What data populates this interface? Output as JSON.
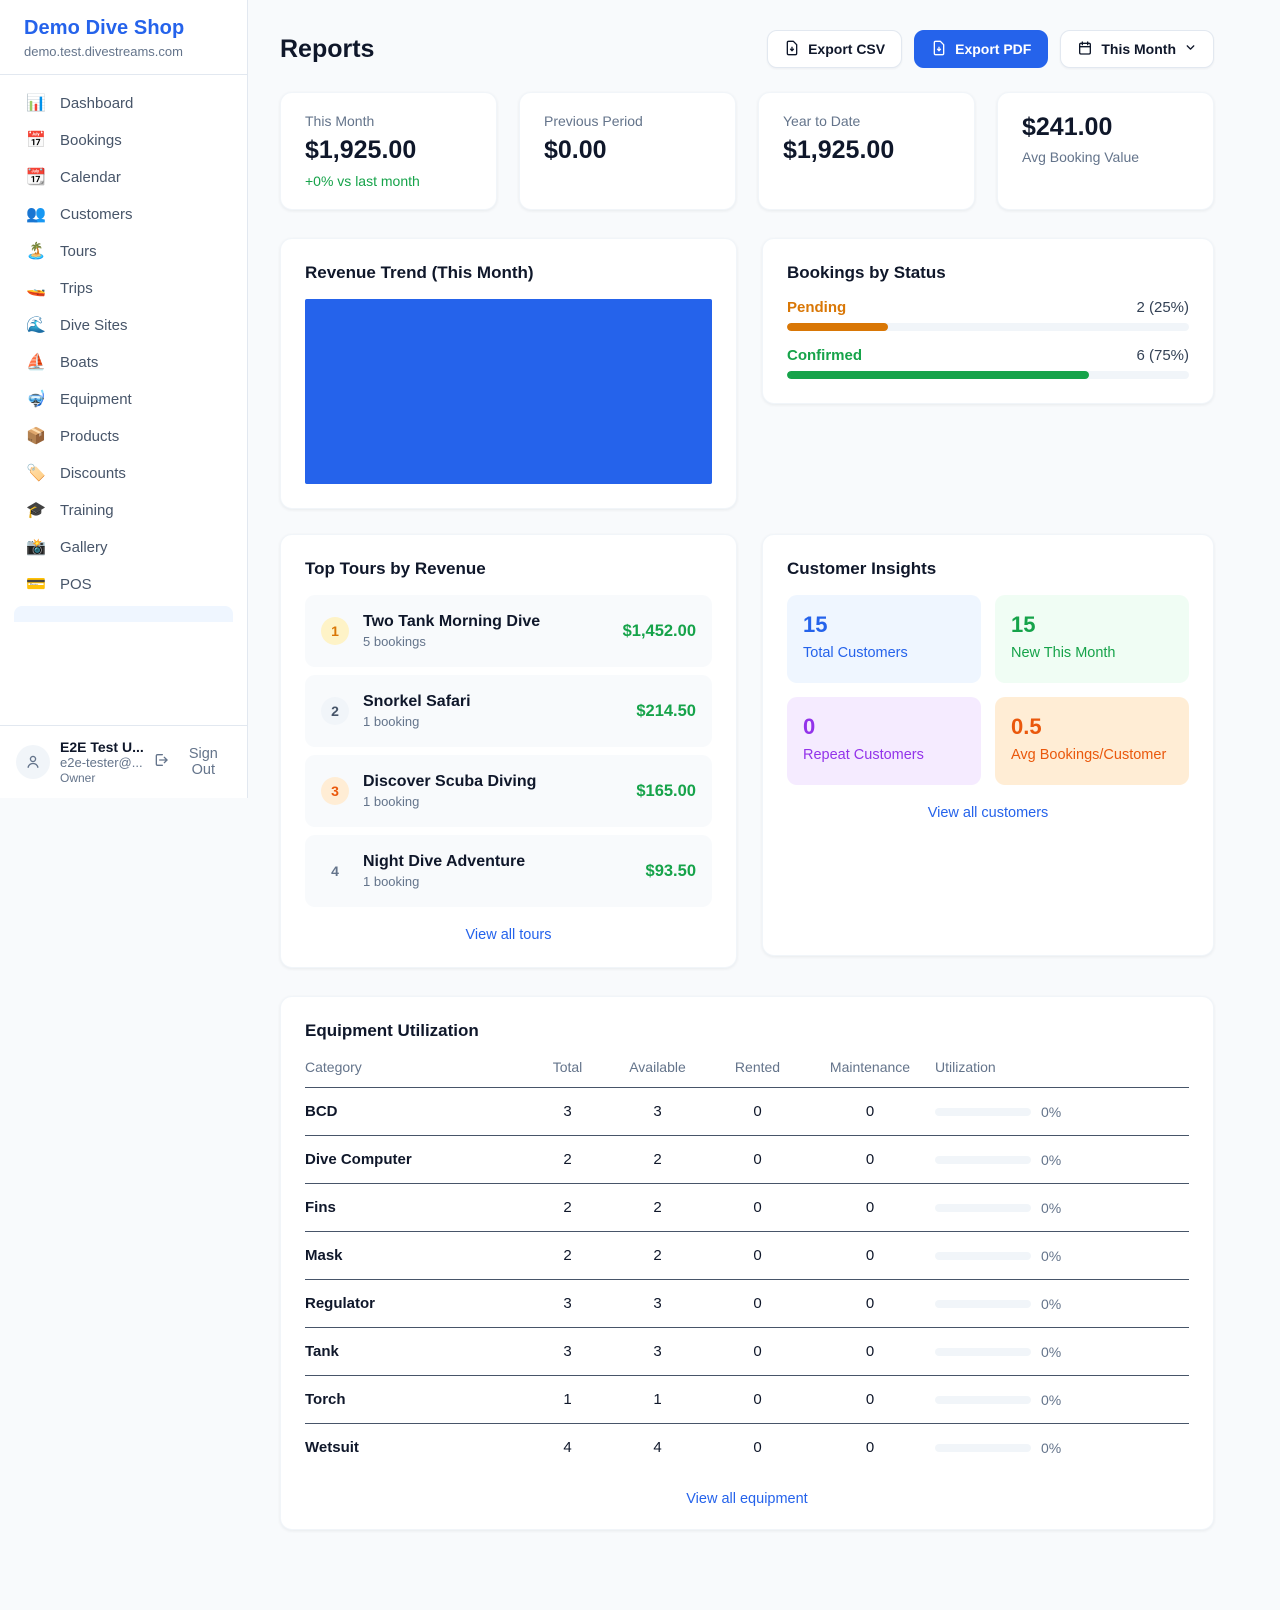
{
  "brand": {
    "name": "Demo Dive Shop",
    "domain": "demo.test.divestreams.com"
  },
  "sidebar": {
    "items": [
      {
        "label": "Dashboard",
        "icon": "bar-chart-icon",
        "glyph": "📊"
      },
      {
        "label": "Bookings",
        "icon": "calendar-icon",
        "glyph": "📅"
      },
      {
        "label": "Calendar",
        "icon": "tearoff-calendar-icon",
        "glyph": "📆"
      },
      {
        "label": "Customers",
        "icon": "people-icon",
        "glyph": "👥"
      },
      {
        "label": "Tours",
        "icon": "island-icon",
        "glyph": "🏝️"
      },
      {
        "label": "Trips",
        "icon": "speedboat-icon",
        "glyph": "🚤"
      },
      {
        "label": "Dive Sites",
        "icon": "wave-icon",
        "glyph": "🌊"
      },
      {
        "label": "Boats",
        "icon": "sailboat-icon",
        "glyph": "⛵"
      },
      {
        "label": "Equipment",
        "icon": "diving-mask-icon",
        "glyph": "🤿"
      },
      {
        "label": "Products",
        "icon": "package-icon",
        "glyph": "📦"
      },
      {
        "label": "Discounts",
        "icon": "label-tag-icon",
        "glyph": "🏷️"
      },
      {
        "label": "Training",
        "icon": "graduation-cap-icon",
        "glyph": "🎓"
      },
      {
        "label": "Gallery",
        "icon": "camera-icon",
        "glyph": "📸"
      },
      {
        "label": "POS",
        "icon": "credit-card-icon",
        "glyph": "💳"
      }
    ],
    "user": {
      "name": "E2E Test U...",
      "email": "e2e-tester@...",
      "role": "Owner",
      "sign_out_label": "Sign Out"
    }
  },
  "header": {
    "title": "Reports",
    "export_csv_label": "Export CSV",
    "export_pdf_label": "Export PDF",
    "period_label": "This Month"
  },
  "stats": [
    {
      "label": "This Month",
      "value": "$1,925.00",
      "delta": "+0% vs last month"
    },
    {
      "label": "Previous Period",
      "value": "$0.00"
    },
    {
      "label": "Year to Date",
      "value": "$1,925.00"
    },
    {
      "label": "Avg Booking Value",
      "value": "$241.00",
      "value_first": true
    }
  ],
  "chart_data": {
    "type": "bar",
    "title": "Revenue Trend (This Month)",
    "categories": [
      "This Month"
    ],
    "values": [
      1925
    ],
    "xlabel": "",
    "ylabel": "",
    "bar_color": "#2563eb",
    "note": "single bar fills entire plot area; no axes, gridlines or tick labels visible"
  },
  "revenue_trend": {
    "title": "Revenue Trend (This Month)"
  },
  "bookings_by_status": {
    "title": "Bookings by Status",
    "rows": [
      {
        "label": "Pending",
        "value": "2 (25%)",
        "pct": 25,
        "color": "#d97706"
      },
      {
        "label": "Confirmed",
        "value": "6 (75%)",
        "pct": 75,
        "color": "#16a34a"
      }
    ]
  },
  "top_tours": {
    "title": "Top Tours by Revenue",
    "link": "View all tours",
    "items": [
      {
        "rank": "1",
        "name": "Two Tank Morning Dive",
        "sub": "5 bookings",
        "amount": "$1,452.00",
        "badge_bg": "#fef3c7",
        "badge_fg": "#d97706"
      },
      {
        "rank": "2",
        "name": "Snorkel Safari",
        "sub": "1 booking",
        "amount": "$214.50",
        "badge_bg": "#f1f5f9",
        "badge_fg": "#475569"
      },
      {
        "rank": "3",
        "name": "Discover Scuba Diving",
        "sub": "1 booking",
        "amount": "$165.00",
        "badge_bg": "#ffedd5",
        "badge_fg": "#ea580c"
      },
      {
        "rank": "4",
        "name": "Night Dive Adventure",
        "sub": "1 booking",
        "amount": "$93.50",
        "badge_bg": "transparent",
        "badge_fg": "#64748b"
      }
    ]
  },
  "customer_insights": {
    "title": "Customer Insights",
    "link": "View all customers",
    "tiles": [
      {
        "value": "15",
        "label": "Total Customers",
        "bg": "#eff6ff",
        "fg": "#2563eb"
      },
      {
        "value": "15",
        "label": "New This Month",
        "bg": "#f0fdf4",
        "fg": "#16a34a"
      },
      {
        "value": "0",
        "label": "Repeat Customers",
        "bg": "#f5ebff",
        "fg": "#9333ea"
      },
      {
        "value": "0.5",
        "label": "Avg Bookings/Customer",
        "bg": "#ffedd5",
        "fg": "#ea580c"
      }
    ]
  },
  "equipment": {
    "title": "Equipment Utilization",
    "link": "View all equipment",
    "columns": [
      "Category",
      "Total",
      "Available",
      "Rented",
      "Maintenance",
      "Utilization"
    ],
    "rows": [
      {
        "category": "BCD",
        "total": "3",
        "available": "3",
        "rented": "0",
        "maintenance": "0",
        "utilization": "0%"
      },
      {
        "category": "Dive Computer",
        "total": "2",
        "available": "2",
        "rented": "0",
        "maintenance": "0",
        "utilization": "0%"
      },
      {
        "category": "Fins",
        "total": "2",
        "available": "2",
        "rented": "0",
        "maintenance": "0",
        "utilization": "0%"
      },
      {
        "category": "Mask",
        "total": "2",
        "available": "2",
        "rented": "0",
        "maintenance": "0",
        "utilization": "0%"
      },
      {
        "category": "Regulator",
        "total": "3",
        "available": "3",
        "rented": "0",
        "maintenance": "0",
        "utilization": "0%"
      },
      {
        "category": "Tank",
        "total": "3",
        "available": "3",
        "rented": "0",
        "maintenance": "0",
        "utilization": "0%"
      },
      {
        "category": "Torch",
        "total": "1",
        "available": "1",
        "rented": "0",
        "maintenance": "0",
        "utilization": "0%"
      },
      {
        "category": "Wetsuit",
        "total": "4",
        "available": "4",
        "rented": "0",
        "maintenance": "0",
        "utilization": "0%"
      }
    ]
  },
  "colors": {
    "accent": "#2563eb",
    "positive_green": "#16a34a",
    "pending_orange": "#d97706",
    "maintenance_orange": "#ea580c",
    "repeat_purple": "#9333ea",
    "page_bg": "#f8fafc"
  }
}
